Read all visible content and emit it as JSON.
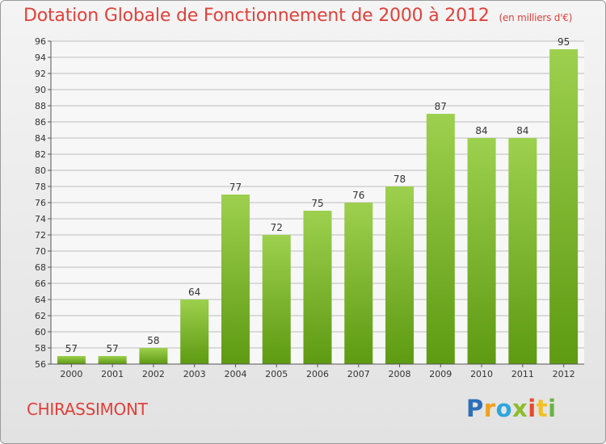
{
  "header": {
    "title": "Dotation Globale de Fonctionnement de 2000 à 2012",
    "unit_note": "(en milliers d'€)"
  },
  "footer": {
    "commune": "CHIRASSIMONT",
    "logo_text": "Proxiti"
  },
  "colors": {
    "bar_top": "#9dd04e",
    "bar_bottom": "#5e9a12",
    "title": "#e0413a",
    "grid": "#bdbdbd"
  },
  "chart_data": {
    "type": "bar",
    "categories": [
      "2000",
      "2001",
      "2002",
      "2003",
      "2004",
      "2005",
      "2006",
      "2007",
      "2008",
      "2009",
      "2010",
      "2011",
      "2012"
    ],
    "values": [
      57,
      57,
      58,
      64,
      77,
      72,
      75,
      76,
      78,
      87,
      84,
      84,
      95
    ],
    "title": "Dotation Globale de Fonctionnement de 2000 à 2012",
    "ylim": [
      56,
      96
    ],
    "yticks": [
      56,
      58,
      60,
      62,
      64,
      66,
      68,
      70,
      72,
      74,
      76,
      78,
      80,
      82,
      84,
      86,
      88,
      90,
      92,
      94,
      96
    ],
    "grid": true,
    "data_labels": true
  }
}
